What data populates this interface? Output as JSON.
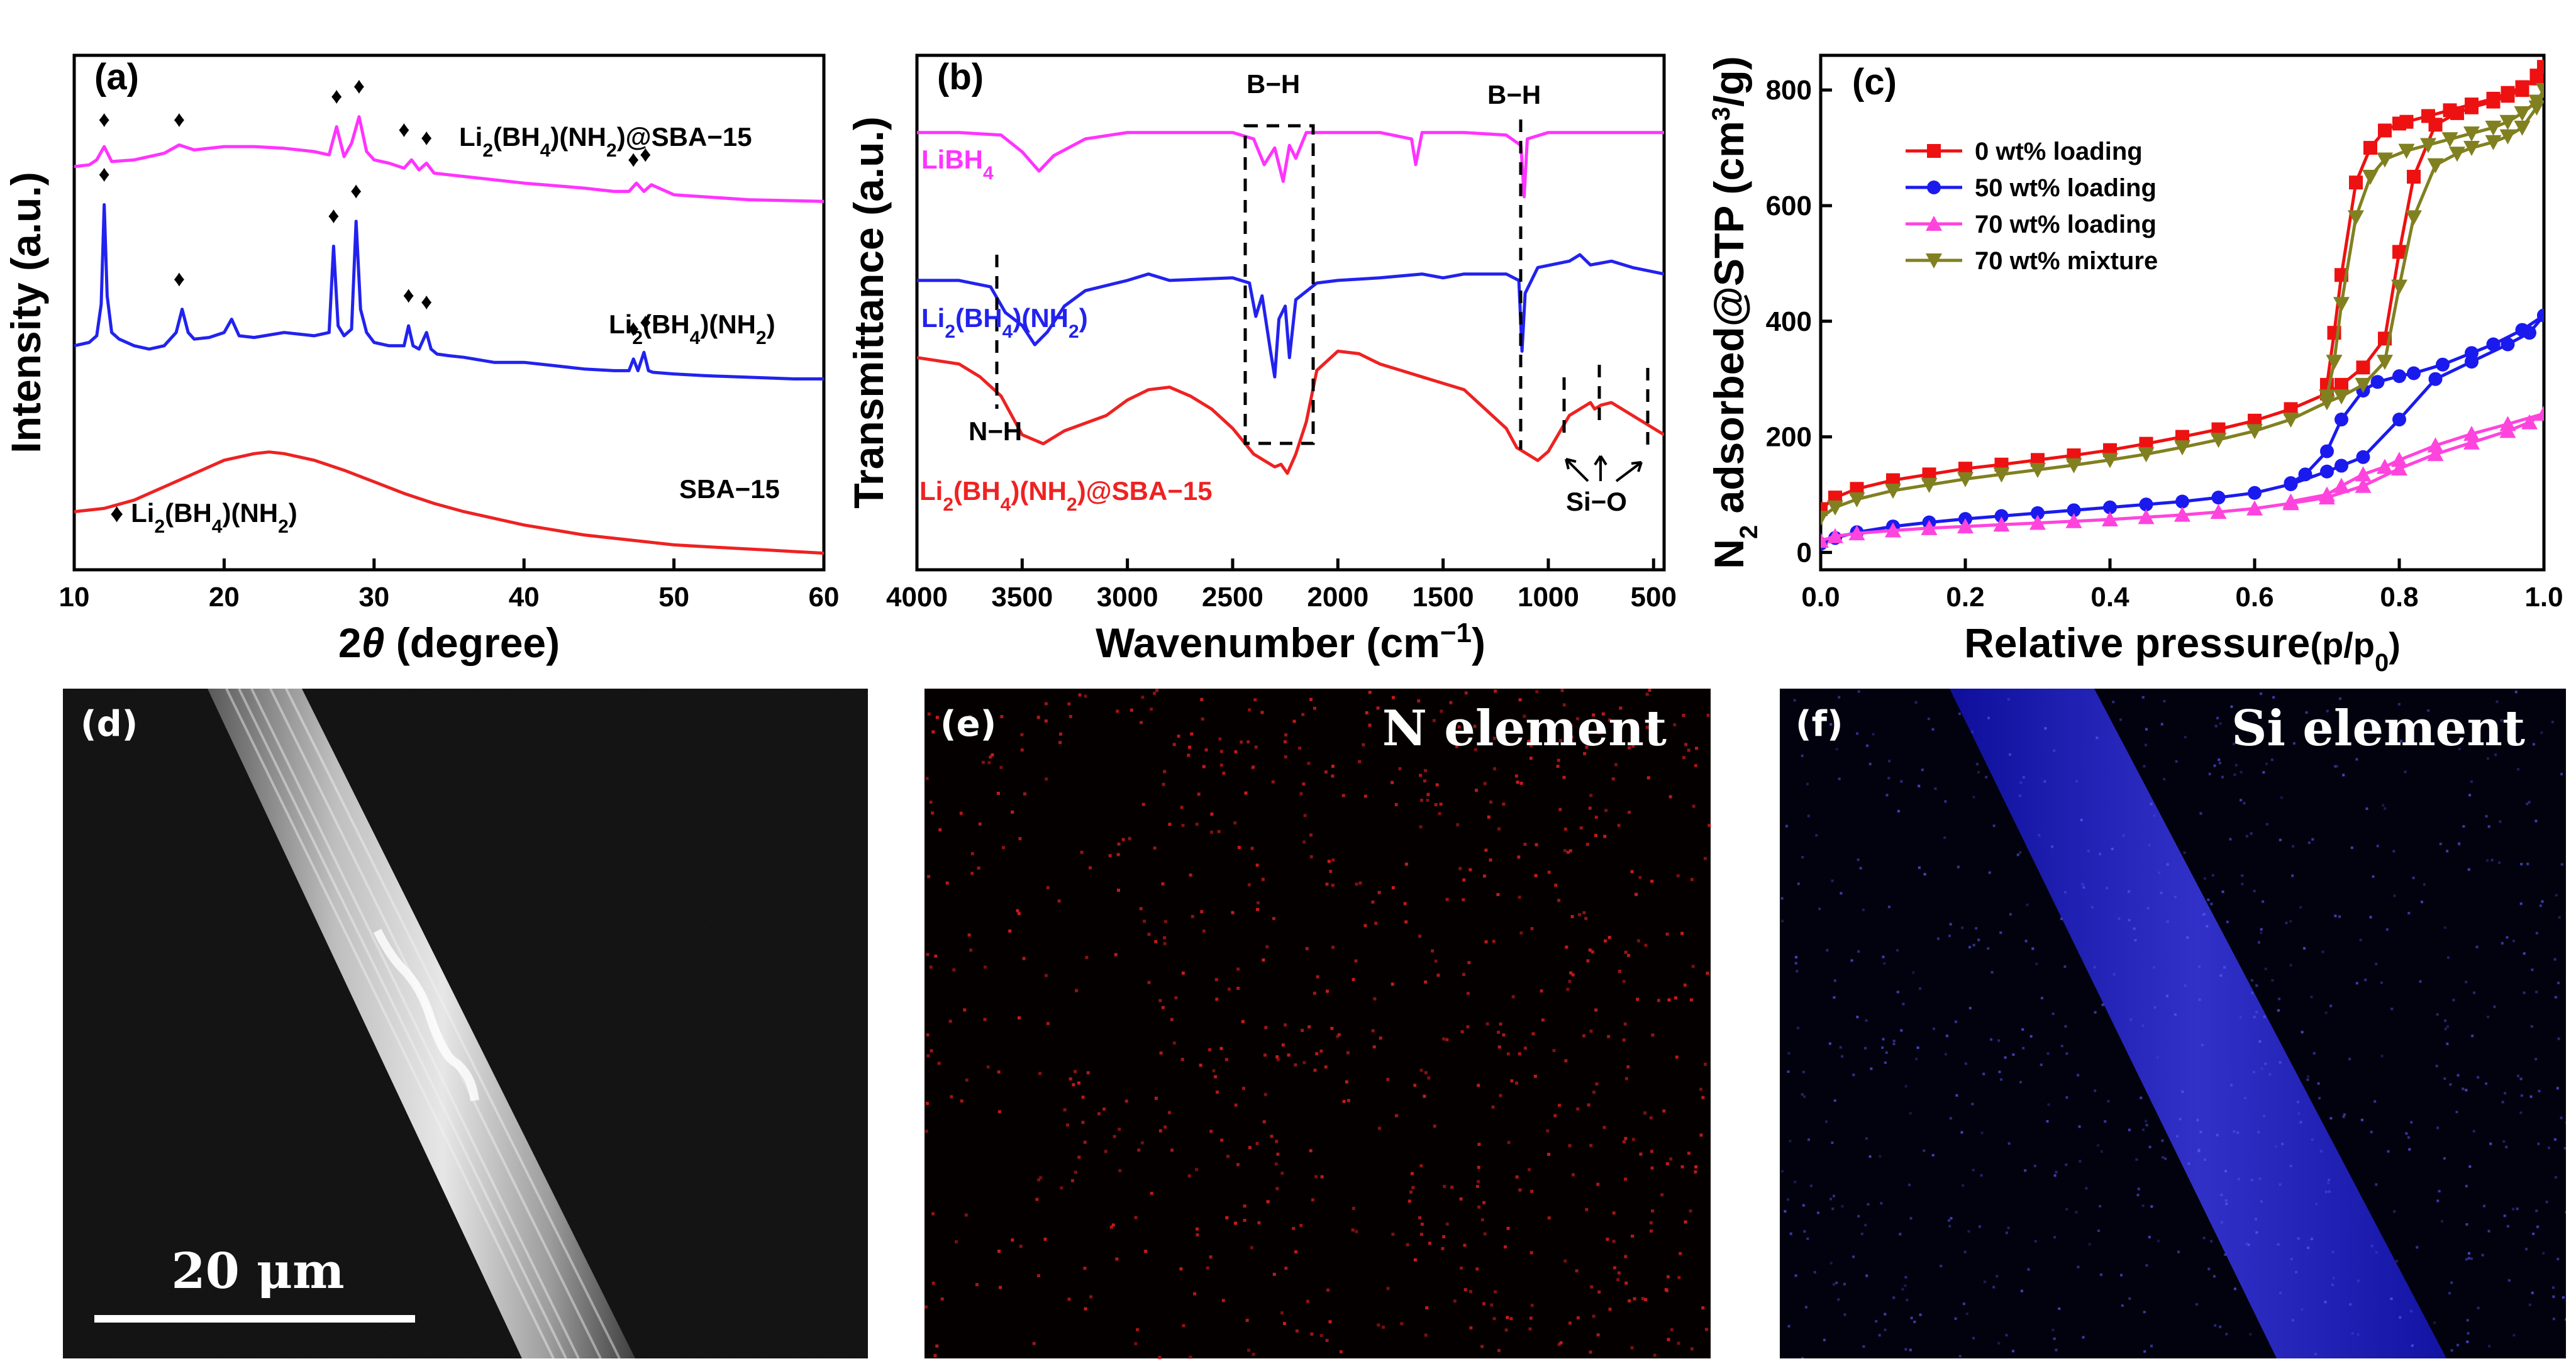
{
  "chart_data": [
    {
      "panel": "(a)",
      "type": "line",
      "xlabel_prefix": "2",
      "xlabel_symbol": "θ",
      "xlabel_suffix": " (degree)",
      "ylabel": "Intensity (a.u.)",
      "xlim": [
        10,
        60
      ],
      "xticks": [
        10,
        20,
        30,
        40,
        50,
        60
      ],
      "series": [
        {
          "name": "Li2(BH4)(NH2)@SBA-15",
          "label_main": "Li",
          "label_parts": [
            "2",
            "(BH",
            "4",
            ")(NH",
            "2",
            ")@SBA−15"
          ],
          "color": "#ff33ff",
          "offset": 2.15,
          "x": [
            10,
            11,
            11.5,
            12,
            12.5,
            14,
            16,
            17,
            18,
            20,
            22,
            24,
            26,
            27,
            27.5,
            28,
            28.5,
            29,
            29.5,
            30,
            31,
            32,
            32.5,
            33,
            33.5,
            34,
            36,
            40,
            44,
            46,
            47,
            47.5,
            48,
            48.5,
            50,
            55,
            60
          ],
          "y": [
            0.18,
            0.19,
            0.22,
            0.3,
            0.21,
            0.22,
            0.26,
            0.31,
            0.28,
            0.3,
            0.3,
            0.29,
            0.27,
            0.25,
            0.42,
            0.24,
            0.32,
            0.48,
            0.27,
            0.22,
            0.2,
            0.17,
            0.22,
            0.16,
            0.2,
            0.14,
            0.12,
            0.08,
            0.05,
            0.03,
            0.03,
            0.08,
            0.03,
            0.07,
            0.01,
            -0.02,
            -0.03
          ]
        },
        {
          "name": "Li2(BH4)(NH2)",
          "label_main": "Li",
          "label_parts": [
            "2",
            "(BH",
            "4",
            ")(NH",
            "2",
            ")"
          ],
          "color": "#2222ee",
          "offset": 1.05,
          "x": [
            10,
            11,
            11.5,
            11.8,
            12,
            12.2,
            12.5,
            13,
            14,
            15,
            16,
            16.8,
            17.2,
            17.6,
            18,
            19,
            20,
            20.5,
            21,
            22,
            24,
            26,
            27,
            27.3,
            27.6,
            28,
            28.5,
            28.8,
            29.1,
            29.5,
            30,
            31,
            32,
            32.3,
            32.6,
            33,
            33.5,
            33.8,
            34.2,
            35,
            36,
            38,
            40,
            42,
            44,
            46,
            47,
            47.3,
            47.6,
            48,
            48.3,
            48.6,
            50,
            52,
            55,
            58,
            60
          ],
          "y": [
            0.2,
            0.22,
            0.26,
            0.45,
            1.05,
            0.5,
            0.28,
            0.24,
            0.2,
            0.18,
            0.2,
            0.28,
            0.42,
            0.28,
            0.24,
            0.25,
            0.28,
            0.36,
            0.26,
            0.25,
            0.28,
            0.26,
            0.28,
            0.8,
            0.32,
            0.26,
            0.3,
            0.95,
            0.42,
            0.28,
            0.22,
            0.2,
            0.2,
            0.32,
            0.2,
            0.18,
            0.28,
            0.18,
            0.15,
            0.14,
            0.13,
            0.1,
            0.1,
            0.08,
            0.06,
            0.05,
            0.05,
            0.12,
            0.05,
            0.16,
            0.05,
            0.04,
            0.03,
            0.02,
            0.01,
            0.0,
            0.0
          ]
        },
        {
          "name": "SBA-15",
          "label_main": "SBA−15",
          "color": "#ee2222",
          "offset": 0.0,
          "x": [
            10,
            12,
            14,
            16,
            18,
            20,
            22,
            23,
            24,
            26,
            28,
            30,
            32,
            34,
            36,
            38,
            40,
            42,
            44,
            46,
            48,
            50,
            52,
            54,
            56,
            58,
            60
          ],
          "y": [
            0.25,
            0.27,
            0.32,
            0.4,
            0.48,
            0.56,
            0.6,
            0.61,
            0.6,
            0.56,
            0.5,
            0.43,
            0.36,
            0.3,
            0.25,
            0.21,
            0.17,
            0.14,
            0.11,
            0.09,
            0.07,
            0.05,
            0.04,
            0.03,
            0.02,
            0.01,
            0.0
          ]
        }
      ],
      "marker_legend": {
        "symbol": "♦",
        "label_main": " Li",
        "label_parts": [
          "2",
          "(BH",
          "4",
          ")(NH",
          "2",
          ")"
        ]
      },
      "ylim": [
        -0.1,
        3.0
      ],
      "annotations_note": "diamond peak markers at 2θ ≈ 12, 17, 27.5, 29, 32, 33.5, 47.5, 48"
    },
    {
      "panel": "(b)",
      "type": "line",
      "xlabel_main": "Wavenumber (cm",
      "xlabel_sup": "−1",
      "xlabel_end": ")",
      "ylabel": "Transmittance (a.u.)",
      "xlim": [
        4000,
        450
      ],
      "xticks": [
        4000,
        3500,
        3000,
        2500,
        2000,
        1500,
        1000,
        500
      ],
      "series": [
        {
          "name": "LiBH4",
          "label_main": "LiBH",
          "label_parts": [
            "4"
          ],
          "color": "#ff33ff",
          "offset": 2.2,
          "x": [
            4000,
            3800,
            3600,
            3500,
            3420,
            3350,
            3200,
            3000,
            2800,
            2500,
            2400,
            2350,
            2300,
            2260,
            2230,
            2200,
            2150,
            2000,
            1800,
            1650,
            1630,
            1600,
            1400,
            1200,
            1130,
            1115,
            1100,
            1000,
            900,
            800,
            700,
            600,
            450
          ],
          "y": [
            0.0,
            0.0,
            -0.02,
            -0.15,
            -0.3,
            -0.18,
            -0.05,
            0.0,
            0.0,
            0.0,
            -0.05,
            -0.25,
            -0.12,
            -0.38,
            -0.1,
            -0.2,
            0.0,
            0.0,
            0.0,
            -0.05,
            -0.25,
            0.0,
            0.0,
            -0.02,
            -0.1,
            -0.5,
            -0.05,
            0.0,
            0.0,
            0.0,
            0.0,
            0.0,
            0.0
          ]
        },
        {
          "name": "Li2(BH4)(NH2)",
          "label_main": "Li",
          "label_parts": [
            "2",
            "(BH",
            "4",
            ")(NH",
            "2",
            ")"
          ],
          "color": "#2222ee",
          "offset": 1.05,
          "x": [
            4000,
            3800,
            3650,
            3580,
            3500,
            3440,
            3380,
            3300,
            3200,
            3000,
            2900,
            2800,
            2500,
            2420,
            2390,
            2360,
            2320,
            2300,
            2280,
            2250,
            2230,
            2200,
            2100,
            2000,
            1800,
            1600,
            1500,
            1400,
            1200,
            1140,
            1125,
            1110,
            1050,
            900,
            850,
            800,
            700,
            600,
            450
          ],
          "y": [
            0.0,
            0.0,
            -0.05,
            -0.25,
            -0.35,
            -0.5,
            -0.4,
            -0.2,
            -0.08,
            0.0,
            0.05,
            0.0,
            0.02,
            -0.02,
            -0.28,
            -0.12,
            -0.55,
            -0.75,
            -0.3,
            -0.2,
            -0.6,
            -0.15,
            -0.02,
            0.0,
            0.02,
            0.05,
            0.02,
            0.05,
            0.05,
            0.0,
            -0.55,
            -0.1,
            0.1,
            0.15,
            0.2,
            0.12,
            0.15,
            0.1,
            0.05
          ]
        },
        {
          "name": "Li2(BH4)(NH2)@SBA-15",
          "label_main": "Li",
          "label_parts": [
            "2",
            "(BH",
            "4",
            ")(NH",
            "2",
            ")@SBA−15"
          ],
          "color": "#ee2222",
          "offset": 0.0,
          "x": [
            4000,
            3800,
            3700,
            3600,
            3500,
            3400,
            3300,
            3100,
            3000,
            2900,
            2800,
            2700,
            2600,
            2500,
            2450,
            2400,
            2350,
            2300,
            2270,
            2240,
            2200,
            2150,
            2100,
            2000,
            1900,
            1800,
            1700,
            1600,
            1500,
            1400,
            1300,
            1200,
            1150,
            1100,
            1050,
            1000,
            900,
            800,
            780,
            750,
            700,
            600,
            500,
            450
          ],
          "y": [
            0.45,
            0.4,
            0.3,
            0.15,
            -0.15,
            -0.22,
            -0.12,
            0.0,
            0.12,
            0.2,
            0.22,
            0.15,
            0.05,
            -0.1,
            -0.2,
            -0.3,
            -0.35,
            -0.4,
            -0.38,
            -0.45,
            -0.3,
            -0.05,
            0.35,
            0.5,
            0.48,
            0.4,
            0.35,
            0.3,
            0.25,
            0.2,
            0.05,
            -0.1,
            -0.25,
            -0.3,
            -0.35,
            -0.28,
            0.0,
            0.1,
            0.05,
            0.08,
            0.1,
            0.0,
            -0.1,
            -0.15
          ]
        }
      ],
      "ylim": [
        -1.2,
        2.8
      ],
      "annotations": {
        "bh_left": "B−H",
        "bh_right": "B−H",
        "nh": "N−H",
        "sio": "Si−O"
      }
    },
    {
      "panel": "(c)",
      "type": "line",
      "xlabel": "Relative pressure",
      "xlabel_paren": "(p/p",
      "xlabel_sub": "0",
      "xlabel_close": ")",
      "ylabel_main": "N",
      "ylabel_sub": "2",
      "ylabel_mid": " adsorbed@STP (cm",
      "ylabel_sup": "3",
      "ylabel_end": "/g)",
      "xlim": [
        0.0,
        1.0
      ],
      "ylim": [
        -30,
        860
      ],
      "xticks": [
        0.0,
        0.2,
        0.4,
        0.6,
        0.8,
        1.0
      ],
      "yticks": [
        0,
        200,
        400,
        600,
        800
      ],
      "series": [
        {
          "name": "0 wt% loading",
          "color": "#ee1111",
          "marker": "square",
          "adsorption": {
            "x": [
              0.0,
              0.02,
              0.05,
              0.1,
              0.15,
              0.2,
              0.25,
              0.3,
              0.35,
              0.4,
              0.45,
              0.5,
              0.55,
              0.6,
              0.65,
              0.7,
              0.72,
              0.75,
              0.78,
              0.8,
              0.82,
              0.85,
              0.88,
              0.9,
              0.93,
              0.95,
              0.97,
              0.99,
              1.0
            ],
            "y": [
              75,
              95,
              110,
              125,
              135,
              145,
              152,
              160,
              168,
              177,
              188,
              200,
              213,
              228,
              248,
              275,
              290,
              320,
              370,
              520,
              650,
              740,
              760,
              770,
              780,
              790,
              800,
              825,
              840
            ]
          },
          "desorption": {
            "x": [
              1.0,
              0.99,
              0.97,
              0.95,
              0.93,
              0.9,
              0.87,
              0.84,
              0.81,
              0.8,
              0.78,
              0.76,
              0.74,
              0.72,
              0.71,
              0.7
            ],
            "y": [
              840,
              820,
              805,
              795,
              785,
              775,
              765,
              755,
              745,
              742,
              730,
              700,
              640,
              480,
              380,
              290
            ]
          }
        },
        {
          "name": "50 wt% loading",
          "color": "#1a1aee",
          "marker": "circle",
          "adsorption": {
            "x": [
              0.0,
              0.02,
              0.05,
              0.1,
              0.15,
              0.2,
              0.25,
              0.3,
              0.35,
              0.4,
              0.45,
              0.5,
              0.55,
              0.6,
              0.65,
              0.7,
              0.72,
              0.75,
              0.8,
              0.85,
              0.9,
              0.95,
              0.98,
              1.0
            ],
            "y": [
              15,
              25,
              35,
              45,
              52,
              58,
              63,
              68,
              73,
              78,
              83,
              88,
              95,
              103,
              118,
              140,
              150,
              165,
              230,
              300,
              330,
              360,
              380,
              410
            ]
          },
          "desorption": {
            "x": [
              1.0,
              0.97,
              0.93,
              0.9,
              0.86,
              0.82,
              0.8,
              0.77,
              0.75,
              0.72,
              0.7,
              0.67,
              0.65
            ],
            "y": [
              410,
              385,
              360,
              345,
              325,
              310,
              305,
              295,
              280,
              230,
              175,
              135,
              120
            ]
          }
        },
        {
          "name": "70 wt% loading",
          "color": "#ff44dd",
          "marker": "triangle-up",
          "adsorption": {
            "x": [
              0.0,
              0.02,
              0.05,
              0.1,
              0.15,
              0.2,
              0.25,
              0.3,
              0.35,
              0.4,
              0.45,
              0.5,
              0.55,
              0.6,
              0.65,
              0.7,
              0.75,
              0.8,
              0.85,
              0.9,
              0.95,
              0.98,
              1.0
            ],
            "y": [
              20,
              28,
              33,
              38,
              42,
              45,
              48,
              51,
              54,
              57,
              61,
              65,
              70,
              76,
              85,
              95,
              115,
              145,
              170,
              190,
              210,
              225,
              240
            ]
          },
          "desorption": {
            "x": [
              1.0,
              0.95,
              0.9,
              0.85,
              0.8,
              0.78,
              0.75,
              0.72,
              0.7,
              0.65
            ],
            "y": [
              240,
              222,
              205,
              185,
              160,
              148,
              135,
              115,
              100,
              88
            ]
          }
        },
        {
          "name": "70 wt% mixture",
          "color": "#808020",
          "marker": "triangle-down",
          "adsorption": {
            "x": [
              0.0,
              0.02,
              0.05,
              0.1,
              0.15,
              0.2,
              0.25,
              0.3,
              0.35,
              0.4,
              0.45,
              0.5,
              0.55,
              0.6,
              0.65,
              0.7,
              0.72,
              0.75,
              0.78,
              0.8,
              0.82,
              0.85,
              0.88,
              0.9,
              0.93,
              0.95,
              0.97,
              0.99,
              1.0
            ],
            "y": [
              60,
              78,
              92,
              107,
              117,
              127,
              135,
              143,
              151,
              160,
              170,
              182,
              195,
              210,
              230,
              260,
              270,
              290,
              330,
              460,
              580,
              670,
              690,
              700,
              710,
              720,
              735,
              770,
              800
            ]
          },
          "desorption": {
            "x": [
              1.0,
              0.99,
              0.97,
              0.95,
              0.93,
              0.9,
              0.87,
              0.84,
              0.81,
              0.78,
              0.76,
              0.74,
              0.72,
              0.71,
              0.7
            ],
            "y": [
              800,
              780,
              760,
              745,
              735,
              725,
              715,
              705,
              695,
              680,
              650,
              580,
              430,
              330,
              270
            ]
          }
        }
      ]
    }
  ],
  "micrographs": [
    {
      "panel": "(d)",
      "scale_bar": "20 μm"
    },
    {
      "panel": "(e)",
      "title": "N element"
    },
    {
      "panel": "(f)",
      "title": "Si element"
    }
  ]
}
